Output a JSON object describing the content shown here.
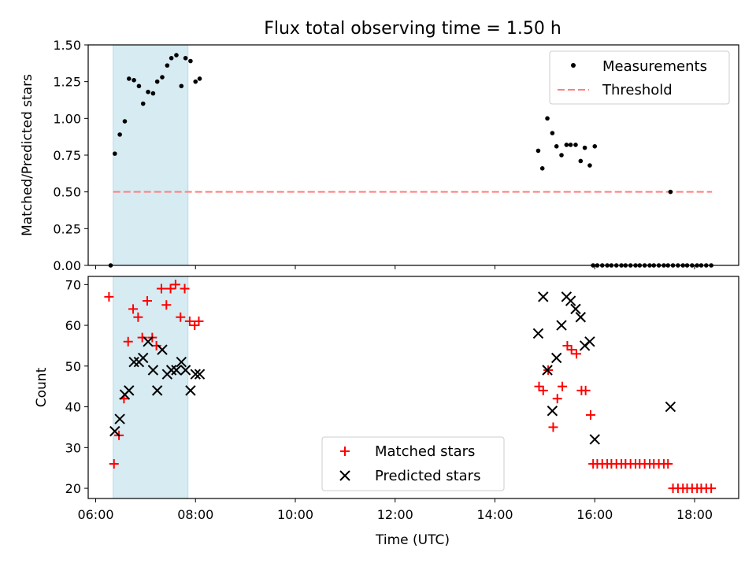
{
  "figure": {
    "title": "Flux total observing time = 1.50 h",
    "xlabel": "Time (UTC)",
    "x_ticks": [
      "06:00",
      "08:00",
      "10:00",
      "12:00",
      "14:00",
      "16:00",
      "18:00"
    ]
  },
  "colors": {
    "measurements": "#000000",
    "threshold": "#ff7f7f",
    "matched": "#ff0000",
    "predicted": "#000000",
    "shaded_span": "#add8e6"
  },
  "chart_data": [
    {
      "type": "scatter",
      "ylabel": "Matched/Predicted stars",
      "ylim": [
        0,
        1.5
      ],
      "y_ticks": [
        "0.00",
        "0.25",
        "0.50",
        "0.75",
        "1.00",
        "1.25",
        "1.50"
      ],
      "xlim": [
        "05:51",
        "18:53"
      ],
      "shaded_span": [
        "06:21",
        "07:51"
      ],
      "legend": {
        "placement": "upper right",
        "entries": [
          "Measurements",
          "Threshold"
        ]
      },
      "threshold": {
        "name": "Threshold",
        "y": 0.5,
        "x_range": [
          "06:21",
          "18:21"
        ]
      },
      "series": [
        {
          "name": "Measurements",
          "points": [
            [
              "06:18",
              0.0
            ],
            [
              "06:23",
              0.76
            ],
            [
              "06:29",
              0.89
            ],
            [
              "06:35",
              0.98
            ],
            [
              "06:40",
              1.27
            ],
            [
              "06:46",
              1.26
            ],
            [
              "06:52",
              1.22
            ],
            [
              "06:57",
              1.1
            ],
            [
              "07:03",
              1.18
            ],
            [
              "07:09",
              1.17
            ],
            [
              "07:14",
              1.25
            ],
            [
              "07:20",
              1.28
            ],
            [
              "07:26",
              1.36
            ],
            [
              "07:31",
              1.41
            ],
            [
              "07:37",
              1.43
            ],
            [
              "07:43",
              1.22
            ],
            [
              "07:48",
              1.41
            ],
            [
              "07:54",
              1.39
            ],
            [
              "08:00",
              1.25
            ],
            [
              "08:05",
              1.27
            ],
            [
              "14:52",
              0.78
            ],
            [
              "14:57",
              0.66
            ],
            [
              "15:03",
              1.0
            ],
            [
              "15:09",
              0.9
            ],
            [
              "15:14",
              0.81
            ],
            [
              "15:20",
              0.75
            ],
            [
              "15:26",
              0.82
            ],
            [
              "15:31",
              0.82
            ],
            [
              "15:37",
              0.82
            ],
            [
              "15:43",
              0.71
            ],
            [
              "15:48",
              0.8
            ],
            [
              "15:54",
              0.68
            ],
            [
              "16:00",
              0.81
            ],
            [
              "15:58",
              0.0
            ],
            [
              "16:03",
              0.0
            ],
            [
              "16:09",
              0.0
            ],
            [
              "16:15",
              0.0
            ],
            [
              "16:20",
              0.0
            ],
            [
              "16:26",
              0.0
            ],
            [
              "16:32",
              0.0
            ],
            [
              "16:37",
              0.0
            ],
            [
              "16:43",
              0.0
            ],
            [
              "16:49",
              0.0
            ],
            [
              "16:54",
              0.0
            ],
            [
              "17:00",
              0.0
            ],
            [
              "17:06",
              0.0
            ],
            [
              "17:11",
              0.0
            ],
            [
              "17:17",
              0.0
            ],
            [
              "17:23",
              0.0
            ],
            [
              "17:28",
              0.0
            ],
            [
              "17:31",
              0.5
            ],
            [
              "17:34",
              0.0
            ],
            [
              "17:40",
              0.0
            ],
            [
              "17:46",
              0.0
            ],
            [
              "17:51",
              0.0
            ],
            [
              "17:57",
              0.0
            ],
            [
              "18:03",
              0.0
            ],
            [
              "18:08",
              0.0
            ],
            [
              "18:14",
              0.0
            ],
            [
              "18:20",
              0.0
            ]
          ]
        }
      ]
    },
    {
      "type": "scatter",
      "ylabel": "Count",
      "ylim": [
        17.5,
        72
      ],
      "y_ticks": [
        "20",
        "30",
        "40",
        "50",
        "60",
        "70"
      ],
      "xlim": [
        "05:51",
        "18:53"
      ],
      "shaded_span": [
        "06:21",
        "07:51"
      ],
      "legend": {
        "placement": "lower center",
        "entries": [
          "Matched stars",
          "Predicted stars"
        ]
      },
      "series": [
        {
          "name": "Matched stars",
          "marker": "+",
          "points": [
            [
              "06:16",
              67
            ],
            [
              "06:22",
              26
            ],
            [
              "06:28",
              33
            ],
            [
              "06:34",
              42
            ],
            [
              "06:39",
              56
            ],
            [
              "06:45",
              64
            ],
            [
              "06:51",
              62
            ],
            [
              "06:56",
              57
            ],
            [
              "07:02",
              66
            ],
            [
              "07:08",
              57
            ],
            [
              "07:13",
              55
            ],
            [
              "07:19",
              69
            ],
            [
              "07:25",
              65
            ],
            [
              "07:30",
              69
            ],
            [
              "07:36",
              70
            ],
            [
              "07:42",
              62
            ],
            [
              "07:47",
              69
            ],
            [
              "07:53",
              61
            ],
            [
              "07:59",
              60
            ],
            [
              "08:04",
              61
            ],
            [
              "14:53",
              45
            ],
            [
              "14:58",
              44
            ],
            [
              "15:04",
              49
            ],
            [
              "15:10",
              35
            ],
            [
              "15:15",
              42
            ],
            [
              "15:21",
              45
            ],
            [
              "15:27",
              55
            ],
            [
              "15:32",
              54
            ],
            [
              "15:38",
              53
            ],
            [
              "15:44",
              44
            ],
            [
              "15:49",
              44
            ],
            [
              "15:55",
              38
            ],
            [
              "15:58",
              26
            ],
            [
              "16:03",
              26
            ],
            [
              "16:09",
              26
            ],
            [
              "16:15",
              26
            ],
            [
              "16:20",
              26
            ],
            [
              "16:26",
              26
            ],
            [
              "16:32",
              26
            ],
            [
              "16:37",
              26
            ],
            [
              "16:43",
              26
            ],
            [
              "16:49",
              26
            ],
            [
              "16:54",
              26
            ],
            [
              "17:00",
              26
            ],
            [
              "17:06",
              26
            ],
            [
              "17:11",
              26
            ],
            [
              "17:17",
              26
            ],
            [
              "17:23",
              26
            ],
            [
              "17:28",
              26
            ],
            [
              "17:34",
              20
            ],
            [
              "17:40",
              20
            ],
            [
              "17:46",
              20
            ],
            [
              "17:51",
              20
            ],
            [
              "17:57",
              20
            ],
            [
              "18:03",
              20
            ],
            [
              "18:08",
              20
            ],
            [
              "18:14",
              20
            ],
            [
              "18:20",
              20
            ]
          ]
        },
        {
          "name": "Predicted stars",
          "marker": "x",
          "points": [
            [
              "06:23",
              34
            ],
            [
              "06:29",
              37
            ],
            [
              "06:35",
              43
            ],
            [
              "06:40",
              44
            ],
            [
              "06:46",
              51
            ],
            [
              "06:52",
              51
            ],
            [
              "06:57",
              52
            ],
            [
              "07:03",
              56
            ],
            [
              "07:09",
              49
            ],
            [
              "07:14",
              44
            ],
            [
              "07:20",
              54
            ],
            [
              "07:26",
              48
            ],
            [
              "07:31",
              49
            ],
            [
              "07:37",
              49
            ],
            [
              "07:43",
              51
            ],
            [
              "07:48",
              49
            ],
            [
              "07:54",
              44
            ],
            [
              "08:00",
              48
            ],
            [
              "08:05",
              48
            ],
            [
              "14:52",
              58
            ],
            [
              "14:58",
              67
            ],
            [
              "15:03",
              49
            ],
            [
              "15:09",
              39
            ],
            [
              "15:14",
              52
            ],
            [
              "15:20",
              60
            ],
            [
              "15:26",
              67
            ],
            [
              "15:31",
              66
            ],
            [
              "15:37",
              64
            ],
            [
              "15:43",
              62
            ],
            [
              "15:48",
              55
            ],
            [
              "15:54",
              56
            ],
            [
              "16:00",
              32
            ],
            [
              "17:31",
              40
            ]
          ]
        }
      ]
    }
  ]
}
